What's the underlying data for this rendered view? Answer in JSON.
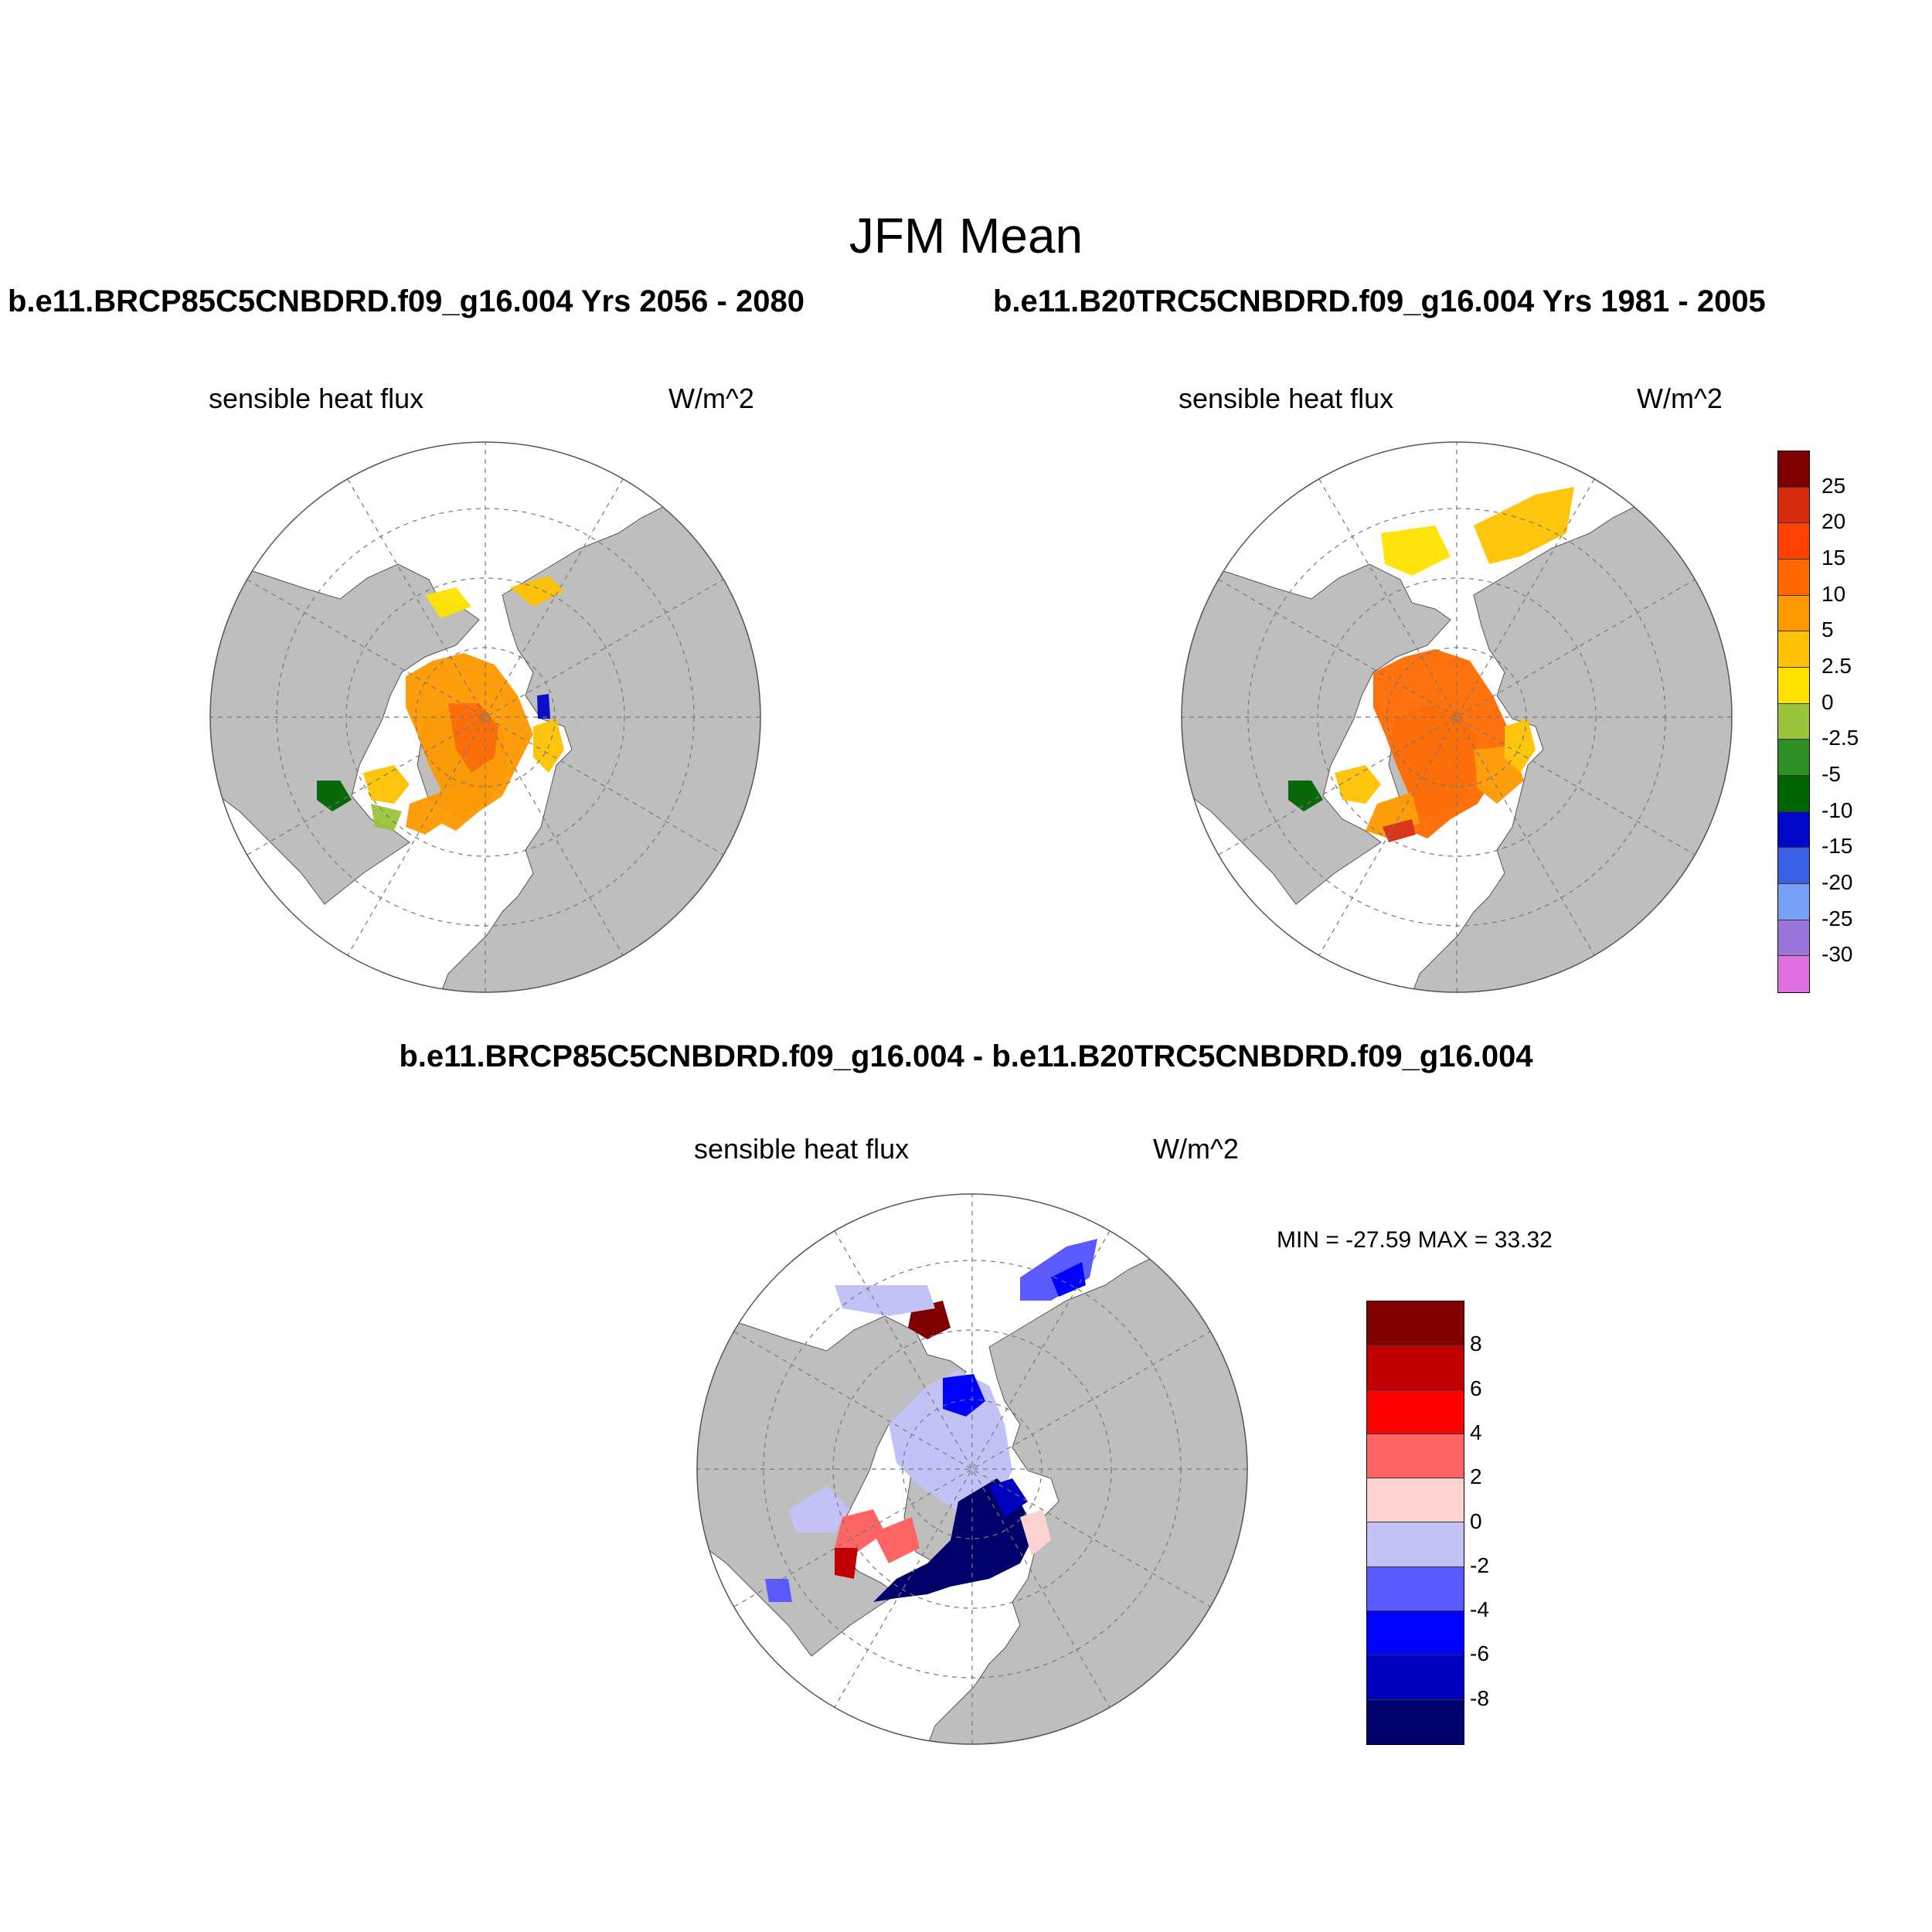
{
  "figure": {
    "title": "JFM Mean",
    "case_titles": [
      "b.e11.BRCP85C5CNBDRD.f09_g16.004  Yrs 2056 - 2080",
      "b.e11.B20TRC5CNBDRD.f09_g16.004  Yrs 1981 - 2005"
    ],
    "diff_title": "b.e11.BRCP85C5CNBDRD.f09_g16.004 - b.e11.B20TRC5CNBDRD.f09_g16.004"
  },
  "panels": [
    {
      "variable": "sensible heat flux",
      "units": "W/m^2"
    },
    {
      "variable": "sensible heat flux",
      "units": "W/m^2"
    },
    {
      "variable": "sensible heat flux",
      "units": "W/m^2",
      "stats": "MIN = -27.59 MAX =  33.32"
    }
  ],
  "colorbar_main": {
    "labels": [
      "25",
      "20",
      "15",
      "10",
      "5",
      "2.5",
      "0",
      "-2.5",
      "-5",
      "-10",
      "-15",
      "-20",
      "-25",
      "-30"
    ],
    "colors": [
      "#7f0000",
      "#d72b0f",
      "#ff4000",
      "#ff6a00",
      "#ff9900",
      "#ffc200",
      "#ffe200",
      "#9ac43a",
      "#2d8f26",
      "#006400",
      "#0008c8",
      "#3a5fe5",
      "#78a0f5",
      "#9a75dc",
      "#e070e0"
    ]
  },
  "colorbar_diff": {
    "labels": [
      "8",
      "6",
      "4",
      "2",
      "0",
      "-2",
      "-4",
      "-6",
      "-8"
    ],
    "colors": [
      "#800000",
      "#c00000",
      "#ff0000",
      "#ff6464",
      "#ffd2d2",
      "#c2c2f7",
      "#5a5aff",
      "#0000ff",
      "#0000c0",
      "#00006a"
    ]
  },
  "map_colors": {
    "ocean": "#ffffff",
    "land": "#bebebe"
  }
}
